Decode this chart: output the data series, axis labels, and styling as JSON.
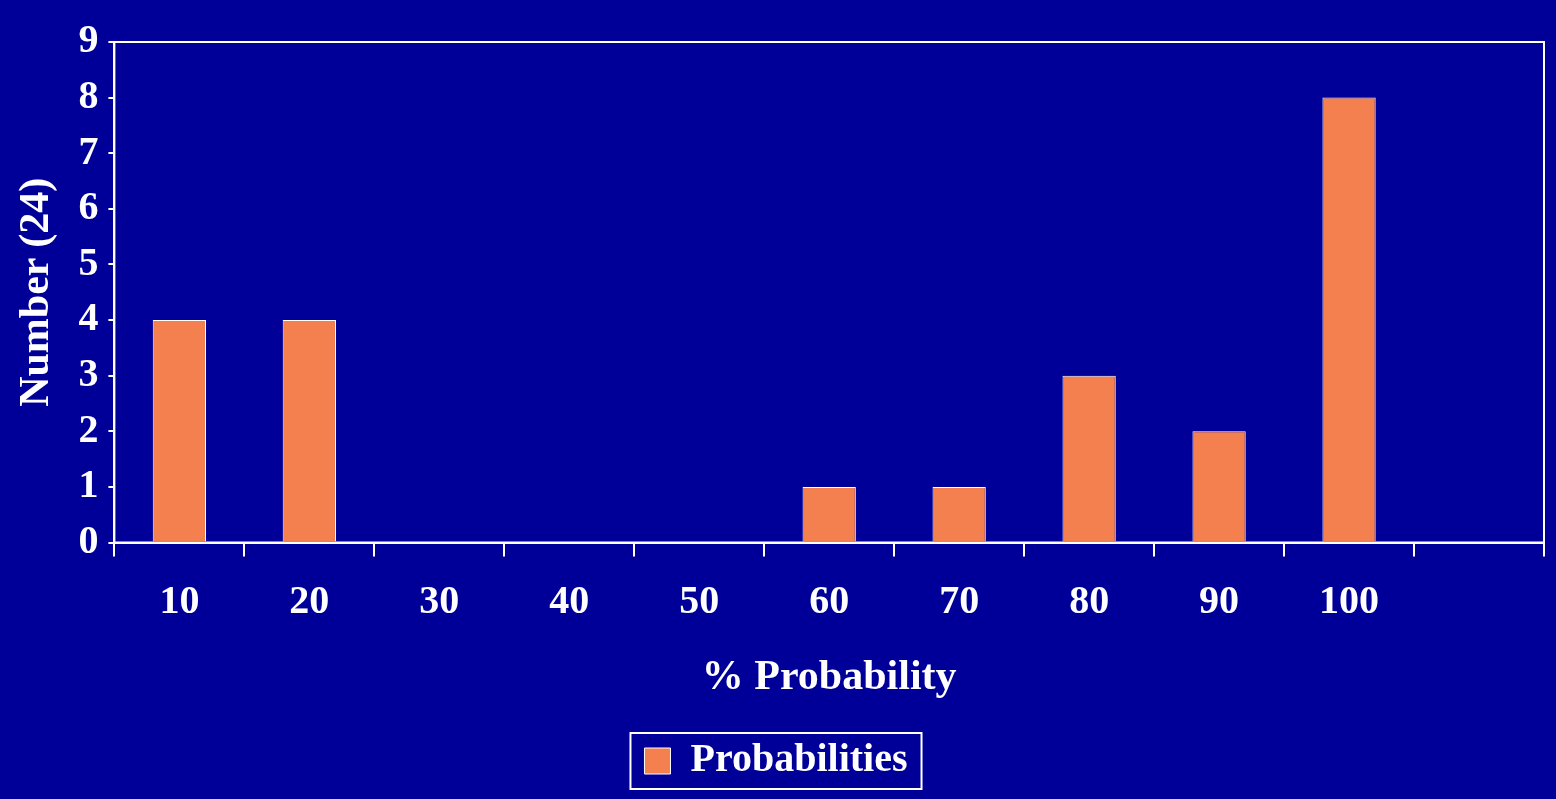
{
  "chart_data": {
    "type": "bar",
    "xlabel": "% Probability",
    "ylabel": "Number (24)",
    "categories": [
      "10",
      "20",
      "30",
      "40",
      "50",
      "60",
      "70",
      "80",
      "90",
      "100",
      null
    ],
    "series": [
      {
        "name": "Probabilities",
        "color": "#f47f4f",
        "values": [
          4,
          4,
          0,
          0,
          0,
          1,
          1,
          3,
          2,
          8,
          null
        ]
      }
    ],
    "ylim": [
      0,
      9
    ],
    "yticks": [
      0,
      1,
      2,
      3,
      4,
      5,
      6,
      7,
      8,
      9
    ],
    "legend": "bottom"
  }
}
